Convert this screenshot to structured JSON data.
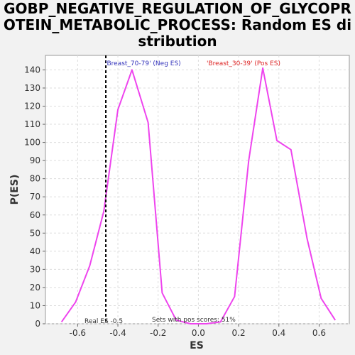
{
  "chart_data": {
    "type": "line",
    "title": "GOBP_NEGATIVE_REGULATION_OF_GLYCOPROTEIN_METABOLIC_PROCESS: Random ES distribution",
    "xlabel": "ES",
    "ylabel": "P(ES)",
    "xlim": [
      -0.76,
      0.75
    ],
    "ylim": [
      0,
      148
    ],
    "xticks": [
      -0.6,
      -0.4,
      -0.2,
      0.0,
      0.2,
      0.4,
      0.6
    ],
    "xtick_labels": [
      "-0.6",
      "-0.4",
      "-0.2",
      "0.0",
      "0.2",
      "0.4",
      "0.6"
    ],
    "yticks": [
      0,
      10,
      20,
      30,
      40,
      50,
      60,
      70,
      80,
      90,
      100,
      110,
      120,
      130,
      140
    ],
    "grid": true,
    "series": [
      {
        "color": "#ee44ee",
        "x": [
          -0.68,
          -0.61,
          -0.54,
          -0.47,
          -0.4,
          -0.33,
          -0.25,
          -0.18,
          -0.11,
          -0.04,
          0.04,
          0.11,
          0.18,
          0.25,
          0.32,
          0.39,
          0.46,
          0.54,
          0.61,
          0.68
        ],
        "y": [
          1,
          12,
          32,
          62,
          118,
          140,
          111,
          17,
          2,
          0,
          0,
          1,
          15,
          90,
          141,
          101,
          96,
          47,
          14,
          2
        ]
      }
    ],
    "real_es": -0.46,
    "annotations": {
      "neg_label": "'Breast_70-79' (Neg ES)",
      "pos_label": "'Breast_30-39' (Pos ES)",
      "real_es_label": "Real ES -0.5",
      "pos_scores_label": "Sets with pos scores: 51%"
    },
    "colors": {
      "line": "#ee44ee",
      "neg_label": "#3333bb",
      "pos_label": "#dd2222"
    }
  }
}
